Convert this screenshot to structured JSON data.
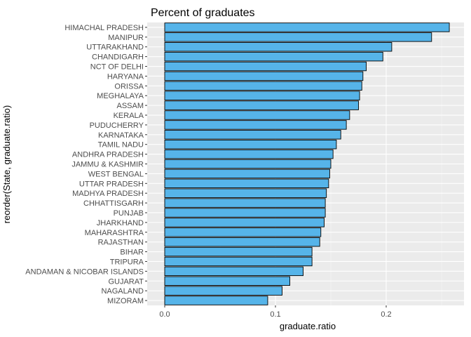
{
  "chart_data": {
    "type": "bar",
    "orientation": "horizontal",
    "title": "Percent of graduates",
    "xlabel": "graduate.ratio",
    "ylabel": "reorder(State, graduate.ratio)",
    "xlim": [
      0,
      0.26
    ],
    "x_ticks": [
      0.0,
      0.1,
      0.2
    ],
    "x_tick_labels": [
      "0.0",
      "0.1",
      "0.2"
    ],
    "grid": true,
    "bar_color": "#56B4E9",
    "bar_outline": "#000000",
    "panel_color": "#EBEBEB",
    "categories": [
      "HIMACHAL PRADESH",
      "MANIPUR",
      "UTTARAKHAND",
      "CHANDIGARH",
      "NCT OF DELHI",
      "HARYANA",
      "ORISSA",
      "MEGHALAYA",
      "ASSAM",
      "KERALA",
      "PUDUCHERRY",
      "KARNATAKA",
      "TAMIL NADU",
      "ANDHRA PRADESH",
      "JAMMU & KASHMIR",
      "WEST BENGAL",
      "UTTAR PRADESH",
      "MADHYA PRADESH",
      "CHHATTISGARH",
      "PUNJAB",
      "JHARKHAND",
      "MAHARASHTRA",
      "RAJASTHAN",
      "BIHAR",
      "TRIPURA",
      "ANDAMAN & NICOBAR ISLANDS",
      "GUJARAT",
      "NAGALAND",
      "MIZORAM"
    ],
    "values": [
      0.257,
      0.241,
      0.205,
      0.197,
      0.182,
      0.179,
      0.178,
      0.176,
      0.175,
      0.167,
      0.164,
      0.159,
      0.155,
      0.152,
      0.15,
      0.149,
      0.148,
      0.146,
      0.145,
      0.145,
      0.144,
      0.141,
      0.14,
      0.133,
      0.133,
      0.125,
      0.113,
      0.106,
      0.093
    ]
  }
}
